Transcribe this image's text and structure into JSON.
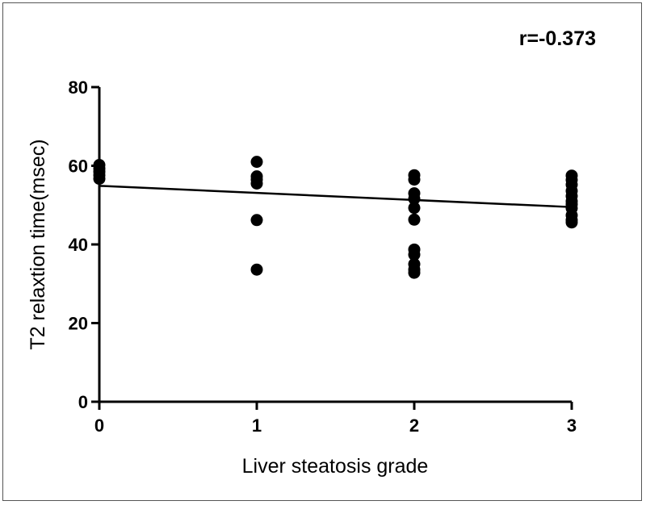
{
  "chart_data": {
    "type": "scatter",
    "title": "",
    "annotation": "r=-0.373",
    "xlabel": "Liver steatosis grade",
    "ylabel": "T2 relaxtion time(msec)",
    "xlim": [
      0,
      3
    ],
    "ylim": [
      0,
      80
    ],
    "x_ticks": [
      0,
      1,
      2,
      3
    ],
    "y_ticks": [
      0,
      20,
      40,
      60,
      80
    ],
    "grid": false,
    "series": [
      {
        "points": [
          [
            0,
            60.2
          ],
          [
            0,
            59.3
          ],
          [
            0,
            58.5
          ],
          [
            0,
            57.6
          ],
          [
            0,
            56.7
          ],
          [
            1,
            61.0
          ],
          [
            1,
            57.3
          ],
          [
            1,
            56.5
          ],
          [
            1,
            55.5
          ],
          [
            1,
            46.2
          ],
          [
            1,
            33.6
          ],
          [
            2,
            57.6
          ],
          [
            2,
            56.5
          ],
          [
            2,
            53.0
          ],
          [
            2,
            51.6
          ],
          [
            2,
            49.3
          ],
          [
            2,
            46.3
          ],
          [
            2,
            38.7
          ],
          [
            2,
            37.4
          ],
          [
            2,
            35.0
          ],
          [
            2,
            33.6
          ],
          [
            2,
            32.8
          ],
          [
            3,
            57.5
          ],
          [
            3,
            56.4
          ],
          [
            3,
            55.2
          ],
          [
            3,
            53.6
          ],
          [
            3,
            52.3
          ],
          [
            3,
            51.0
          ],
          [
            3,
            50.2
          ],
          [
            3,
            49.2
          ],
          [
            3,
            47.4
          ],
          [
            3,
            46.2
          ],
          [
            3,
            45.6
          ]
        ]
      }
    ],
    "regression_line": {
      "x": [
        0,
        3
      ],
      "y": [
        54.9,
        49.5
      ]
    }
  }
}
